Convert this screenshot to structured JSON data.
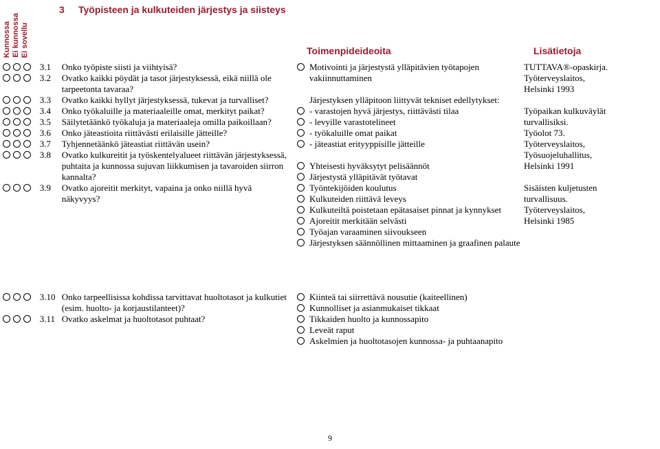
{
  "header": {
    "rot_labels": [
      "Kunnossa",
      "Ei kunnossa",
      "Ei sovellu"
    ],
    "section_number": "3",
    "section_title": "Työpisteen ja kulkuteiden järjestys ja siisteys",
    "col_mid": "Toimenpideideoita",
    "col_right": "Lisätietoja"
  },
  "questions_top": [
    {
      "n": "3.1",
      "t": "Onko työpiste siisti ja viihtyisä?"
    },
    {
      "n": "3.2",
      "t": "Ovatko kaikki pöydät ja tasot järjestyksessä, eikä niillä ole tarpeetonta tavaraa?"
    },
    {
      "n": "3.3",
      "t": "Ovatko kaikki hyllyt järjestyksessä, tukevat ja turvalliset?"
    },
    {
      "n": "3.4",
      "t": "Onko työkaluille ja materiaaleille omat, merkityt paikat?"
    },
    {
      "n": "3.5",
      "t": "Säilytetäänkö työkaluja ja materiaaleja omilla paikoillaan?"
    },
    {
      "n": "3.6",
      "t": "Onko jäteastioita riittävästi erilaisille jätteille?"
    },
    {
      "n": "3.7",
      "t": "Tyhjennetäänkö jäteastiat riittävän usein?"
    },
    {
      "n": "3.8",
      "t": "Ovatko kulkureitit ja työskentelyalueet riittävän järjestyksessä, puhtaita ja kunnossa sujuvan liikkumisen ja tavaroiden siirron kannalta?"
    },
    {
      "n": "3.9",
      "t": "Ovatko ajoreitit merkityt, vapaina ja onko niillä hyvä näkyvyys?"
    }
  ],
  "mid_top": [
    {
      "bullet": true,
      "t": "Motivointi ja järjestystä ylläpitävien työtapojen vakiinnuttaminen"
    },
    {
      "bullet": false,
      "t": ""
    },
    {
      "bullet": false,
      "t": "Järjestyksen ylläpitoon liittyvät tekniset edellytykset:"
    },
    {
      "bullet": true,
      "t": "- varastojen hyvä järjestys, riittävästi tilaa"
    },
    {
      "bullet": true,
      "t": "- levyille varastotelineet"
    },
    {
      "bullet": true,
      "t": "- työkaluille omat paikat"
    },
    {
      "bullet": true,
      "t": "- jäteastiat erityyppisille jätteille"
    },
    {
      "bullet": false,
      "t": ""
    },
    {
      "bullet": true,
      "t": "Yhteisesti hyväksytyt pelisäännöt"
    },
    {
      "bullet": true,
      "t": "Järjestystä ylläpitävät työtavat"
    },
    {
      "bullet": true,
      "t": "Työntekijöiden koulutus"
    },
    {
      "bullet": true,
      "t": "Kulkuteiden riittävä leveys"
    },
    {
      "bullet": true,
      "t": "Kulkuteiltä poistetaan epätasaiset pinnat ja kynnykset"
    },
    {
      "bullet": true,
      "t": "Ajoreitit merkitään selvästi"
    },
    {
      "bullet": true,
      "t": "Työajan varaaminen siivoukseen"
    },
    {
      "bullet": true,
      "t": "Järjestyksen säännöllinen mittaaminen ja graafinen palaute"
    }
  ],
  "right_top": [
    "TUTTAVA®-opas­kirja.",
    "Työterveyslaitos,",
    "Helsinki 1993",
    "",
    "Työpaikan kulku­väylät turvallisiksi.",
    "Työolot 73.",
    "Työterveyslaitos,",
    "Työsuojeluhallitus,",
    "Helsinki 1991",
    "",
    "Sisäisten kuljetusten turvallisuus.",
    "Työterveyslaitos,",
    "Helsinki 1985"
  ],
  "questions_bottom": [
    {
      "n": "3.10",
      "t": "Onko tarpeellisissa kohdissa tarvittavat huoltotasot ja kulkutiet (esim. huolto- ja korjaustilanteet)?"
    },
    {
      "n": "3.11",
      "t": "Ovatko askelmat ja huoltotasot puhtaat?"
    }
  ],
  "mid_bottom": [
    {
      "bullet": true,
      "t": "Kiinteä tai siirrettävä nousutie (kaiteellinen)"
    },
    {
      "bullet": true,
      "t": "Kunnolliset ja asianmukaiset tikkaat"
    },
    {
      "bullet": true,
      "t": "Tikkaiden huolto ja kunnossapito"
    },
    {
      "bullet": true,
      "t": "Leveät raput"
    },
    {
      "bullet": true,
      "t": "Askelmien ja huoltotasojen kunnossa- ja puhtaanapito"
    }
  ],
  "page_number": "9"
}
